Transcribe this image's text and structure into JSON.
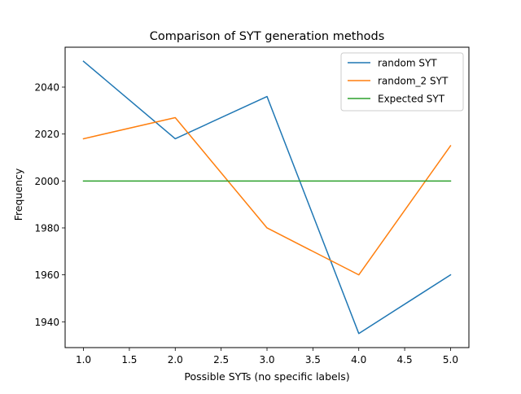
{
  "chart_data": {
    "type": "line",
    "title": "Comparison of SYT generation methods",
    "xlabel": "Possible SYTs (no specific labels)",
    "ylabel": "Frequency",
    "x": [
      1,
      2,
      3,
      4,
      5
    ],
    "xlim": [
      0.8,
      5.2
    ],
    "ylim": [
      1929,
      2057
    ],
    "xticks": [
      1.0,
      1.5,
      2.0,
      2.5,
      3.0,
      3.5,
      4.0,
      4.5,
      5.0
    ],
    "xtick_labels": [
      "1.0",
      "1.5",
      "2.0",
      "2.5",
      "3.0",
      "3.5",
      "4.0",
      "4.5",
      "5.0"
    ],
    "yticks": [
      1940,
      1960,
      1980,
      2000,
      2020,
      2040
    ],
    "ytick_labels": [
      "1940",
      "1960",
      "1980",
      "2000",
      "2020",
      "2040"
    ],
    "grid": false,
    "legend_position": "top-right",
    "series": [
      {
        "name": "random SYT",
        "color": "#1f77b4",
        "values": [
          2051,
          2018,
          2036,
          1935,
          1960
        ]
      },
      {
        "name": "random_2 SYT",
        "color": "#ff7f0e",
        "values": [
          2018,
          2027,
          1980,
          1960,
          2015
        ]
      },
      {
        "name": "Expected SYT",
        "color": "#2ca02c",
        "values": [
          2000,
          2000,
          2000,
          2000,
          2000
        ]
      }
    ]
  }
}
